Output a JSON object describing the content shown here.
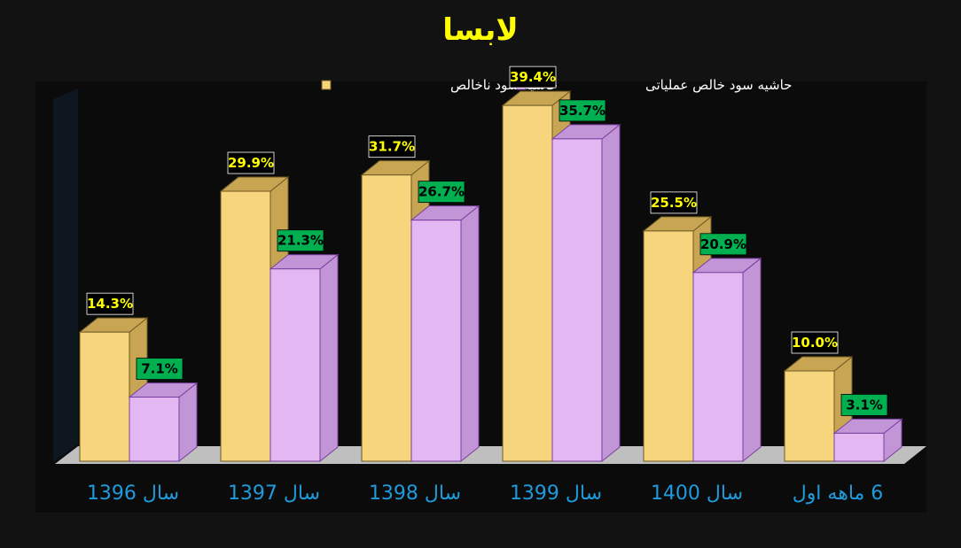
{
  "colors": {
    "background": "#121212",
    "plot_area": "#0b0b0b",
    "title": "#ffff00",
    "series_1_face": "#f7d57c",
    "series_1_side": "#c8a552",
    "series_2_face": "#e3b8f2",
    "series_2_side": "#c295d6",
    "label_1_text": "#ffff00",
    "label_2_bg": "#00b050",
    "category_text": "#1f9bdc",
    "floor": "#bfbfbf"
  },
  "chart_data": {
    "type": "bar",
    "title": "لابسا",
    "categories": [
      "سال 1396",
      "سال 1397",
      "سال 1398",
      "سال 1399",
      "سال 1400",
      "6 ماهه اول"
    ],
    "series": [
      {
        "name": "حاشیه سود ناخالص",
        "values": [
          14.3,
          29.9,
          31.7,
          39.4,
          25.5,
          10.0
        ],
        "labels": [
          "14.3%",
          "29.9%",
          "31.7%",
          "39.4%",
          "25.5%",
          "10.0%"
        ]
      },
      {
        "name": "حاشیه سود خالص عملیاتی",
        "values": [
          7.1,
          21.3,
          26.7,
          35.7,
          20.9,
          3.1
        ],
        "labels": [
          "7.1%",
          "21.3%",
          "26.7%",
          "35.7%",
          "20.9%",
          "3.1%"
        ]
      }
    ],
    "ylim": [
      0,
      40
    ],
    "grid": false,
    "legend_position": "top",
    "style": "3d-clustered-column"
  }
}
